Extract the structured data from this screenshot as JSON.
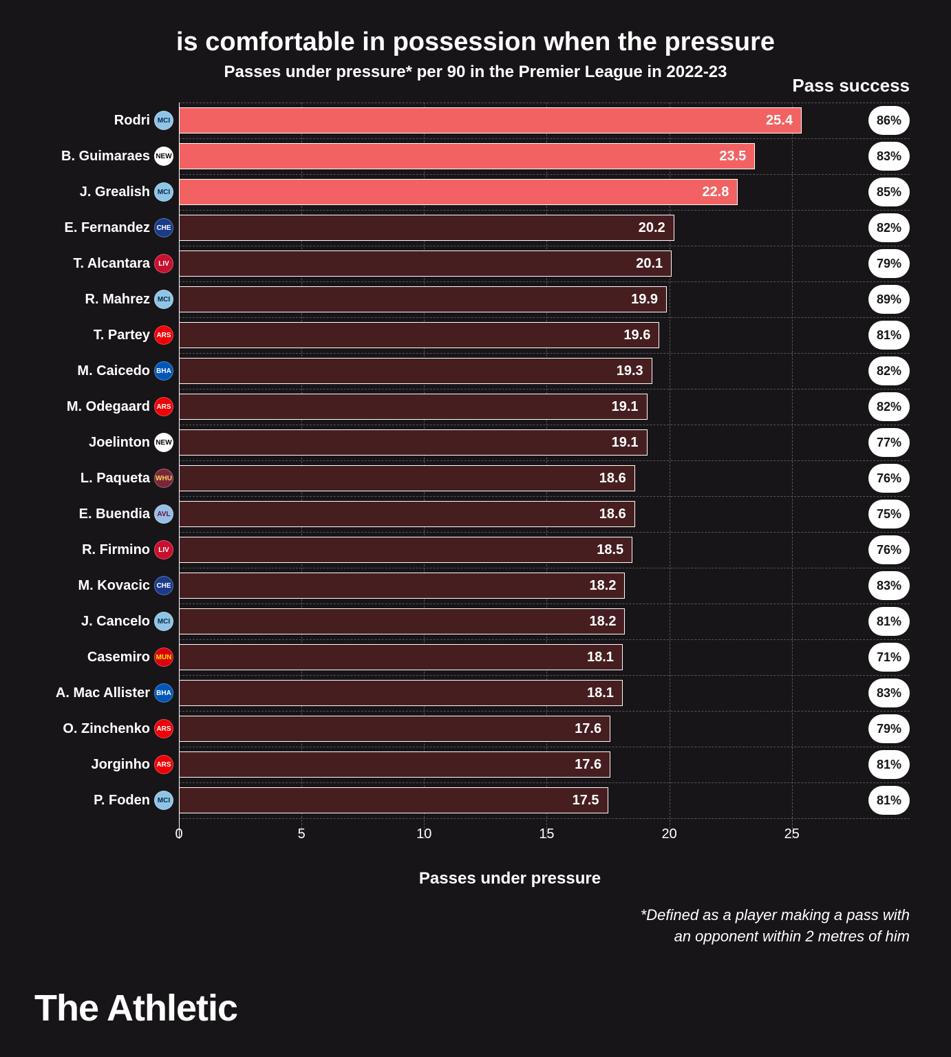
{
  "title": "is comfortable in possession when the pressure",
  "subtitle": "Passes under pressure* per 90 in the Premier League in 2022-23",
  "pass_success_header": "Pass success",
  "x_label": "Passes under pressure",
  "footnote_line1": "*Defined as a player making a pass with",
  "footnote_line2": "an opponent within 2 metres of him",
  "brand": "The Athletic",
  "chart": {
    "type": "bar-horizontal",
    "xlim": [
      0,
      27
    ],
    "xticks": [
      0,
      5,
      10,
      15,
      20,
      25
    ],
    "bar_border_color": "#ffffff",
    "grid_color": "#5a5558",
    "background_color": "#181518",
    "text_color": "#ffffff",
    "highlight_bar_color": "#f26262",
    "normal_bar_color": "#471e20",
    "pill_bg": "#ffffff",
    "pill_fg": "#181518",
    "players": [
      {
        "name": "Rodri",
        "value": 25.4,
        "success": "86%",
        "highlight": true,
        "club": "MCI",
        "club_bg": "#8fc4e6",
        "club_fg": "#0a2a40"
      },
      {
        "name": "B. Guimaraes",
        "value": 23.5,
        "success": "83%",
        "highlight": true,
        "club": "NEW",
        "club_bg": "#ffffff",
        "club_fg": "#000000"
      },
      {
        "name": "J. Grealish",
        "value": 22.8,
        "success": "85%",
        "highlight": true,
        "club": "MCI",
        "club_bg": "#8fc4e6",
        "club_fg": "#0a2a40"
      },
      {
        "name": "E. Fernandez",
        "value": 20.2,
        "success": "82%",
        "highlight": false,
        "club": "CHE",
        "club_bg": "#1a3a8a",
        "club_fg": "#ffffff"
      },
      {
        "name": "T. Alcantara",
        "value": 20.1,
        "success": "79%",
        "highlight": false,
        "club": "LIV",
        "club_bg": "#c8102e",
        "club_fg": "#ffffff"
      },
      {
        "name": "R. Mahrez",
        "value": 19.9,
        "success": "89%",
        "highlight": false,
        "club": "MCI",
        "club_bg": "#8fc4e6",
        "club_fg": "#0a2a40"
      },
      {
        "name": "T. Partey",
        "value": 19.6,
        "success": "81%",
        "highlight": false,
        "club": "ARS",
        "club_bg": "#ef0107",
        "club_fg": "#ffffff"
      },
      {
        "name": "M. Caicedo",
        "value": 19.3,
        "success": "82%",
        "highlight": false,
        "club": "BHA",
        "club_bg": "#0057b8",
        "club_fg": "#ffffff"
      },
      {
        "name": "M. Odegaard",
        "value": 19.1,
        "success": "82%",
        "highlight": false,
        "club": "ARS",
        "club_bg": "#ef0107",
        "club_fg": "#ffffff"
      },
      {
        "name": "Joelinton",
        "value": 19.1,
        "success": "77%",
        "highlight": false,
        "club": "NEW",
        "club_bg": "#ffffff",
        "club_fg": "#000000"
      },
      {
        "name": "L. Paqueta",
        "value": 18.6,
        "success": "76%",
        "highlight": false,
        "club": "WHU",
        "club_bg": "#7a263a",
        "club_fg": "#f3d459"
      },
      {
        "name": "E. Buendia",
        "value": 18.6,
        "success": "75%",
        "highlight": false,
        "club": "AVL",
        "club_bg": "#95bfe5",
        "club_fg": "#670e36"
      },
      {
        "name": "R. Firmino",
        "value": 18.5,
        "success": "76%",
        "highlight": false,
        "club": "LIV",
        "club_bg": "#c8102e",
        "club_fg": "#ffffff"
      },
      {
        "name": "M. Kovacic",
        "value": 18.2,
        "success": "83%",
        "highlight": false,
        "club": "CHE",
        "club_bg": "#1a3a8a",
        "club_fg": "#ffffff"
      },
      {
        "name": "J. Cancelo",
        "value": 18.2,
        "success": "81%",
        "highlight": false,
        "club": "MCI",
        "club_bg": "#8fc4e6",
        "club_fg": "#0a2a40"
      },
      {
        "name": "Casemiro",
        "value": 18.1,
        "success": "71%",
        "highlight": false,
        "club": "MUN",
        "club_bg": "#da020e",
        "club_fg": "#ffe500"
      },
      {
        "name": "A. Mac Allister",
        "value": 18.1,
        "success": "83%",
        "highlight": false,
        "club": "BHA",
        "club_bg": "#0057b8",
        "club_fg": "#ffffff"
      },
      {
        "name": "O. Zinchenko",
        "value": 17.6,
        "success": "79%",
        "highlight": false,
        "club": "ARS",
        "club_bg": "#ef0107",
        "club_fg": "#ffffff"
      },
      {
        "name": "Jorginho",
        "value": 17.6,
        "success": "81%",
        "highlight": false,
        "club": "ARS",
        "club_bg": "#ef0107",
        "club_fg": "#ffffff"
      },
      {
        "name": "P. Foden",
        "value": 17.5,
        "success": "81%",
        "highlight": false,
        "club": "MCI",
        "club_bg": "#8fc4e6",
        "club_fg": "#0a2a40"
      }
    ]
  }
}
